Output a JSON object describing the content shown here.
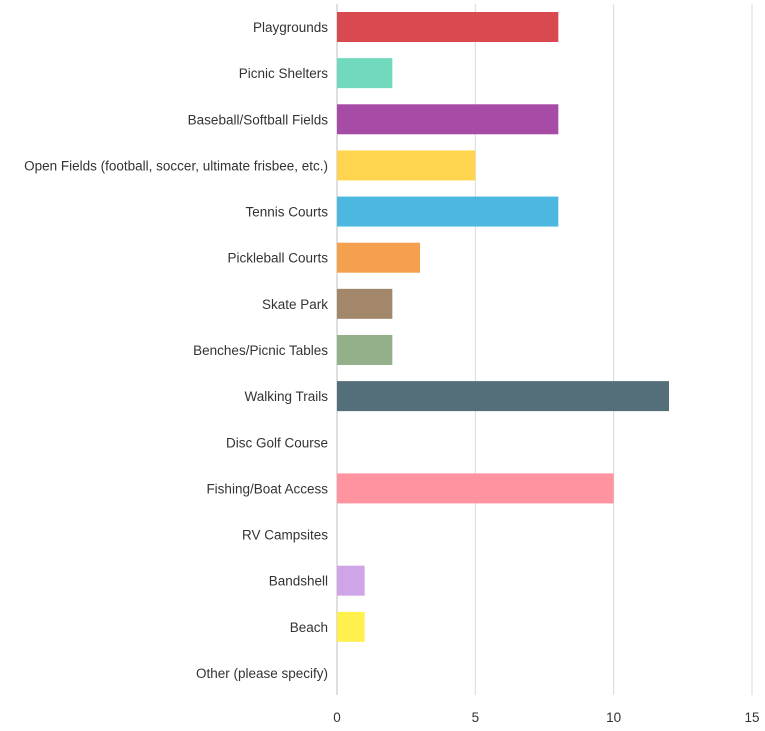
{
  "chart_data": {
    "type": "bar",
    "orientation": "horizontal",
    "categories": [
      "Playgrounds",
      "Picnic Shelters",
      "Baseball/Softball Fields",
      "Open Fields (football, soccer, ultimate frisbee, etc.)",
      "Tennis Courts",
      "Pickleball Courts",
      "Skate Park",
      "Benches/Picnic Tables",
      "Walking Trails",
      "Disc Golf Course",
      "Fishing/Boat Access",
      "RV Campsites",
      "Bandshell",
      "Beach",
      "Other (please specify)"
    ],
    "values": [
      8,
      2,
      8,
      5,
      8,
      3,
      2,
      2,
      12,
      0,
      10,
      0,
      1,
      1,
      0
    ],
    "colors": [
      "#d84a4f",
      "#70d9be",
      "#a64ca6",
      "#ffd54f",
      "#4cb8e0",
      "#f5a04e",
      "#a3876a",
      "#93b08a",
      "#546e7a",
      "#cccccc",
      "#ff939f",
      "#cccccc",
      "#cfa5e8",
      "#fff04e",
      "#cccccc"
    ],
    "xlim": [
      0,
      15
    ],
    "xticks": [
      0,
      5,
      10,
      15
    ],
    "grid": true,
    "title": "",
    "xlabel": "",
    "ylabel": ""
  }
}
